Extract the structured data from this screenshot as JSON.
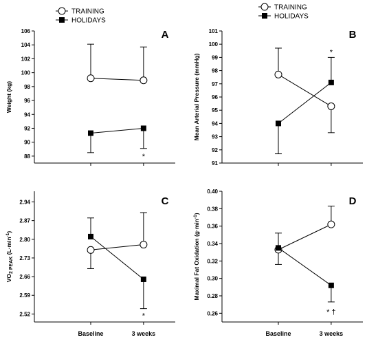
{
  "legend": {
    "training": "TRAINING",
    "holidays": "HOLIDAYS"
  },
  "x_categories": [
    "Baseline",
    "3 weeks"
  ],
  "chart_data": [
    {
      "type": "line",
      "panel": "A",
      "ylabel": "Weight (kg)",
      "ylim": [
        87,
        106
      ],
      "yticks": [
        "88",
        "90",
        "92",
        "94",
        "96",
        "98",
        "100",
        "102",
        "104",
        "106"
      ],
      "categories": [
        "Baseline",
        "3 weeks"
      ],
      "series": [
        {
          "name": "TRAINING",
          "marker": "open-circle",
          "values": [
            99.2,
            98.9
          ],
          "error": [
            4.9,
            4.8
          ],
          "err_dir": "up"
        },
        {
          "name": "HOLIDAYS",
          "marker": "filled-square",
          "values": [
            91.3,
            92.0
          ],
          "error": [
            2.8,
            2.9
          ],
          "err_dir": "down"
        }
      ],
      "annotations": [
        {
          "text": "*",
          "category": 1,
          "y": 88.0
        }
      ]
    },
    {
      "type": "line",
      "panel": "B",
      "ylabel": "Mean Arterial Pressure (mmHg)",
      "ylim": [
        91,
        101
      ],
      "yticks": [
        "91",
        "92",
        "93",
        "94",
        "95",
        "96",
        "97",
        "98",
        "99",
        "100",
        "101"
      ],
      "categories": [
        "Baseline",
        "3 weeks"
      ],
      "series": [
        {
          "name": "TRAINING",
          "marker": "open-circle",
          "values": [
            97.7,
            95.3
          ],
          "error": [
            2.0,
            2.0
          ],
          "err_dir": [
            "up",
            "down"
          ]
        },
        {
          "name": "HOLIDAYS",
          "marker": "filled-square",
          "values": [
            94.0,
            97.1
          ],
          "error": [
            2.3,
            1.9
          ],
          "err_dir": [
            "down",
            "up"
          ]
        }
      ],
      "annotations": [
        {
          "text": "*",
          "category": 1,
          "y": 99.4
        }
      ]
    },
    {
      "type": "line",
      "panel": "C",
      "ylabel": "VO2 PEAK (L·min-1)",
      "ylim": [
        2.49,
        2.98
      ],
      "yticks": [
        "2.52",
        "2.59",
        "2.66",
        "2.73",
        "2.80",
        "2.87",
        "2.94"
      ],
      "categories": [
        "Baseline",
        "3 weeks"
      ],
      "series": [
        {
          "name": "TRAINING",
          "marker": "open-circle",
          "values": [
            2.76,
            2.78
          ],
          "error": [
            0.07,
            0.12
          ],
          "err_dir": [
            "down",
            "up"
          ]
        },
        {
          "name": "HOLIDAYS",
          "marker": "filled-square",
          "values": [
            2.81,
            2.65
          ],
          "error": [
            0.07,
            0.11
          ],
          "err_dir": [
            "up",
            "down"
          ]
        }
      ],
      "annotations": [
        {
          "text": "*",
          "category": 1,
          "y": 2.515
        }
      ]
    },
    {
      "type": "line",
      "panel": "D",
      "ylabel": "Maximal Fat Oxidation (g·min-1)",
      "ylim": [
        0.25,
        0.4
      ],
      "yticks": [
        "0.26",
        "0.28",
        "0.30",
        "0.32",
        "0.34",
        "0.36",
        "0.38",
        "0.40"
      ],
      "categories": [
        "Baseline",
        "3 weeks"
      ],
      "series": [
        {
          "name": "TRAINING",
          "marker": "open-circle",
          "values": [
            0.333,
            0.362
          ],
          "error": [
            0.017,
            0.021
          ],
          "err_dir": [
            "down",
            "up"
          ]
        },
        {
          "name": "HOLIDAYS",
          "marker": "filled-square",
          "values": [
            0.335,
            0.292
          ],
          "error": [
            0.017,
            0.019
          ],
          "err_dir": [
            "up",
            "down"
          ]
        }
      ],
      "annotations": [
        {
          "text": "* †",
          "category": 1,
          "y": 0.262
        }
      ]
    }
  ]
}
